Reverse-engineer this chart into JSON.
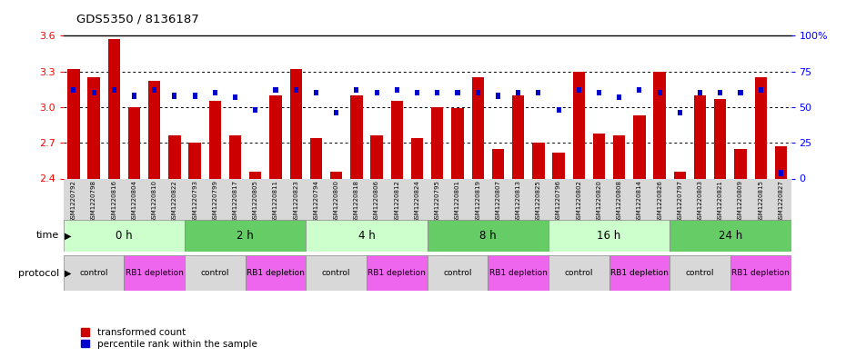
{
  "title": "GDS5350 / 8136187",
  "samples": [
    "GSM1220792",
    "GSM1220798",
    "GSM1220816",
    "GSM1220804",
    "GSM1220810",
    "GSM1220822",
    "GSM1220793",
    "GSM1220799",
    "GSM1220817",
    "GSM1220805",
    "GSM1220811",
    "GSM1220823",
    "GSM1220794",
    "GSM1220800",
    "GSM1220818",
    "GSM1220806",
    "GSM1220812",
    "GSM1220824",
    "GSM1220795",
    "GSM1220801",
    "GSM1220819",
    "GSM1220807",
    "GSM1220813",
    "GSM1220825",
    "GSM1220796",
    "GSM1220802",
    "GSM1220820",
    "GSM1220808",
    "GSM1220814",
    "GSM1220826",
    "GSM1220797",
    "GSM1220803",
    "GSM1220821",
    "GSM1220809",
    "GSM1220815",
    "GSM1220827"
  ],
  "transformed_count": [
    3.32,
    3.25,
    3.57,
    3.0,
    3.22,
    2.76,
    2.7,
    3.05,
    2.76,
    2.46,
    3.1,
    3.32,
    2.74,
    2.46,
    3.1,
    2.76,
    3.05,
    2.74,
    3.0,
    2.99,
    3.25,
    2.65,
    3.1,
    2.7,
    2.62,
    3.3,
    2.78,
    2.76,
    2.93,
    3.3,
    2.46,
    3.1,
    3.07,
    2.65,
    3.25,
    2.67
  ],
  "percentile_rank": [
    62,
    60,
    62,
    58,
    62,
    58,
    58,
    60,
    57,
    48,
    62,
    62,
    60,
    46,
    62,
    60,
    62,
    60,
    60,
    60,
    60,
    58,
    60,
    60,
    48,
    62,
    60,
    57,
    62,
    60,
    46,
    60,
    60,
    60,
    62,
    4
  ],
  "ylim_left": [
    2.4,
    3.6
  ],
  "ylim_right": [
    0,
    100
  ],
  "yticks_left": [
    2.4,
    2.7,
    3.0,
    3.3,
    3.6
  ],
  "yticks_right": [
    0,
    25,
    50,
    75,
    100
  ],
  "time_groups": [
    {
      "label": "0 h",
      "start": 0,
      "end": 6
    },
    {
      "label": "2 h",
      "start": 6,
      "end": 12
    },
    {
      "label": "4 h",
      "start": 12,
      "end": 18
    },
    {
      "label": "8 h",
      "start": 18,
      "end": 24
    },
    {
      "label": "16 h",
      "start": 24,
      "end": 30
    },
    {
      "label": "24 h",
      "start": 30,
      "end": 36
    }
  ],
  "protocol_groups": [
    {
      "label": "control",
      "start": 0,
      "end": 3,
      "color": "#d8d8d8"
    },
    {
      "label": "RB1 depletion",
      "start": 3,
      "end": 6,
      "color": "#ee66ee"
    },
    {
      "label": "control",
      "start": 6,
      "end": 9,
      "color": "#d8d8d8"
    },
    {
      "label": "RB1 depletion",
      "start": 9,
      "end": 12,
      "color": "#ee66ee"
    },
    {
      "label": "control",
      "start": 12,
      "end": 15,
      "color": "#d8d8d8"
    },
    {
      "label": "RB1 depletion",
      "start": 15,
      "end": 18,
      "color": "#ee66ee"
    },
    {
      "label": "control",
      "start": 18,
      "end": 21,
      "color": "#d8d8d8"
    },
    {
      "label": "RB1 depletion",
      "start": 21,
      "end": 24,
      "color": "#ee66ee"
    },
    {
      "label": "control",
      "start": 24,
      "end": 27,
      "color": "#d8d8d8"
    },
    {
      "label": "RB1 depletion",
      "start": 27,
      "end": 30,
      "color": "#ee66ee"
    },
    {
      "label": "control",
      "start": 30,
      "end": 33,
      "color": "#d8d8d8"
    },
    {
      "label": "RB1 depletion",
      "start": 33,
      "end": 36,
      "color": "#ee66ee"
    }
  ],
  "bar_color": "#cc0000",
  "percentile_color": "#0000cc",
  "time_bg_colors": [
    "#ccffcc",
    "#66cc66"
  ],
  "xtick_bg_color": "#d8d8d8",
  "background_color": "#ffffff",
  "legend_tc": "transformed count",
  "legend_pr": "percentile rank within the sample"
}
